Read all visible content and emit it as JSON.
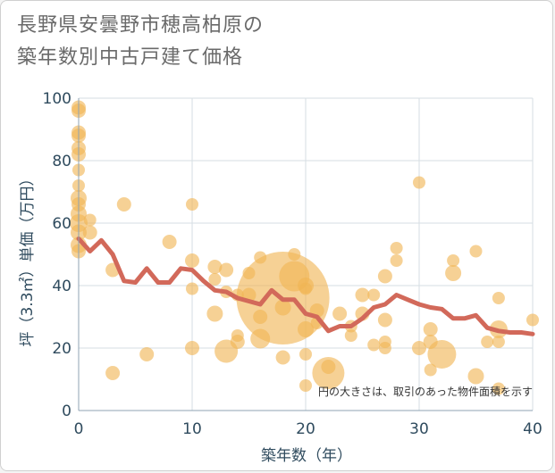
{
  "title_lines": [
    "長野県安曇野市穂高柏原の",
    "築年数別中古戸建て価格"
  ],
  "chart_data": {
    "type": "scatter",
    "title": "長野県安曇野市穂高柏原の築年数別中古戸建て価格",
    "xlabel": "築年数（年）",
    "ylabel": "坪（3.3㎡）単価（万円）",
    "xlim": [
      0,
      40
    ],
    "ylim": [
      0,
      100
    ],
    "xticks": [
      0,
      10,
      20,
      30,
      40
    ],
    "yticks": [
      0,
      20,
      40,
      60,
      80,
      100
    ],
    "grid": true,
    "note": "円の大きさは、取引のあった物件面積を示す",
    "bubble_color": "#f0b454",
    "line_color": "#d2695a",
    "points": [
      {
        "x": 0,
        "y": 96,
        "s": 8
      },
      {
        "x": 0,
        "y": 97,
        "s": 8
      },
      {
        "x": 0,
        "y": 89,
        "s": 8
      },
      {
        "x": 0,
        "y": 88,
        "s": 8
      },
      {
        "x": 0,
        "y": 84,
        "s": 8
      },
      {
        "x": 0,
        "y": 82,
        "s": 8
      },
      {
        "x": 0,
        "y": 77,
        "s": 7
      },
      {
        "x": 0,
        "y": 72,
        "s": 7
      },
      {
        "x": 0,
        "y": 68,
        "s": 9
      },
      {
        "x": 0,
        "y": 66,
        "s": 8
      },
      {
        "x": 0,
        "y": 63,
        "s": 9
      },
      {
        "x": 0,
        "y": 60,
        "s": 10
      },
      {
        "x": 0,
        "y": 57,
        "s": 9
      },
      {
        "x": 0,
        "y": 53,
        "s": 9
      },
      {
        "x": 0,
        "y": 51,
        "s": 8
      },
      {
        "x": 1,
        "y": 61,
        "s": 7
      },
      {
        "x": 1,
        "y": 57,
        "s": 8
      },
      {
        "x": 3,
        "y": 45,
        "s": 8
      },
      {
        "x": 3,
        "y": 12,
        "s": 8
      },
      {
        "x": 4,
        "y": 66,
        "s": 8
      },
      {
        "x": 6,
        "y": 18,
        "s": 8
      },
      {
        "x": 8,
        "y": 54,
        "s": 8
      },
      {
        "x": 10,
        "y": 66,
        "s": 7
      },
      {
        "x": 10,
        "y": 48,
        "s": 8
      },
      {
        "x": 10,
        "y": 39,
        "s": 7
      },
      {
        "x": 10,
        "y": 20,
        "s": 8
      },
      {
        "x": 12,
        "y": 46,
        "s": 8
      },
      {
        "x": 12,
        "y": 42,
        "s": 7
      },
      {
        "x": 12,
        "y": 31,
        "s": 9
      },
      {
        "x": 13,
        "y": 45,
        "s": 8
      },
      {
        "x": 13,
        "y": 38,
        "s": 7
      },
      {
        "x": 13,
        "y": 19,
        "s": 13
      },
      {
        "x": 14,
        "y": 37,
        "s": 7
      },
      {
        "x": 14,
        "y": 24,
        "s": 7
      },
      {
        "x": 14,
        "y": 22,
        "s": 8
      },
      {
        "x": 15,
        "y": 44,
        "s": 7
      },
      {
        "x": 15,
        "y": 37,
        "s": 8
      },
      {
        "x": 16,
        "y": 49,
        "s": 7
      },
      {
        "x": 16,
        "y": 30,
        "s": 8
      },
      {
        "x": 16,
        "y": 23,
        "s": 11
      },
      {
        "x": 18,
        "y": 36,
        "s": 52
      },
      {
        "x": 18,
        "y": 33,
        "s": 9
      },
      {
        "x": 18,
        "y": 17,
        "s": 8
      },
      {
        "x": 19,
        "y": 50,
        "s": 7
      },
      {
        "x": 19,
        "y": 43,
        "s": 17
      },
      {
        "x": 20,
        "y": 40,
        "s": 9
      },
      {
        "x": 20,
        "y": 39,
        "s": 7
      },
      {
        "x": 20,
        "y": 26,
        "s": 9
      },
      {
        "x": 20,
        "y": 18,
        "s": 7
      },
      {
        "x": 20,
        "y": 8,
        "s": 7
      },
      {
        "x": 21,
        "y": 32,
        "s": 8
      },
      {
        "x": 21,
        "y": 28,
        "s": 7
      },
      {
        "x": 22,
        "y": 14,
        "s": 8
      },
      {
        "x": 22,
        "y": 12,
        "s": 18
      },
      {
        "x": 23,
        "y": 31,
        "s": 8
      },
      {
        "x": 24,
        "y": 27,
        "s": 7
      },
      {
        "x": 24,
        "y": 24,
        "s": 7
      },
      {
        "x": 25,
        "y": 37,
        "s": 8
      },
      {
        "x": 25,
        "y": 31,
        "s": 8
      },
      {
        "x": 26,
        "y": 37,
        "s": 7
      },
      {
        "x": 26,
        "y": 21,
        "s": 7
      },
      {
        "x": 27,
        "y": 43,
        "s": 8
      },
      {
        "x": 27,
        "y": 29,
        "s": 8
      },
      {
        "x": 27,
        "y": 22,
        "s": 7
      },
      {
        "x": 27,
        "y": 20,
        "s": 7
      },
      {
        "x": 28,
        "y": 52,
        "s": 7
      },
      {
        "x": 28,
        "y": 48,
        "s": 7
      },
      {
        "x": 30,
        "y": 73,
        "s": 7
      },
      {
        "x": 30,
        "y": 20,
        "s": 8
      },
      {
        "x": 31,
        "y": 26,
        "s": 8
      },
      {
        "x": 31,
        "y": 22,
        "s": 8
      },
      {
        "x": 31,
        "y": 13,
        "s": 7
      },
      {
        "x": 32,
        "y": 18,
        "s": 16
      },
      {
        "x": 33,
        "y": 48,
        "s": 7
      },
      {
        "x": 33,
        "y": 44,
        "s": 9
      },
      {
        "x": 35,
        "y": 51,
        "s": 7
      },
      {
        "x": 35,
        "y": 11,
        "s": 9
      },
      {
        "x": 36,
        "y": 22,
        "s": 7
      },
      {
        "x": 37,
        "y": 36,
        "s": 7
      },
      {
        "x": 37,
        "y": 26,
        "s": 10
      },
      {
        "x": 37,
        "y": 22,
        "s": 7
      },
      {
        "x": 37,
        "y": 7,
        "s": 7
      },
      {
        "x": 40,
        "y": 29,
        "s": 7
      }
    ],
    "trend": {
      "x": [
        0,
        1,
        2,
        3,
        4,
        5,
        6,
        7,
        8,
        9,
        10,
        11,
        12,
        13,
        14,
        15,
        16,
        17,
        18,
        19,
        20,
        21,
        22,
        23,
        24,
        25,
        26,
        27,
        28,
        29,
        30,
        31,
        32,
        33,
        34,
        35,
        36,
        37,
        38,
        39,
        40
      ],
      "y": [
        55,
        51,
        54.5,
        50,
        41.5,
        41,
        45.5,
        41,
        41,
        45.5,
        45,
        41.5,
        38.5,
        38,
        36,
        35,
        34,
        38.5,
        35.5,
        35.5,
        31,
        30,
        25.5,
        27,
        27,
        29.5,
        33,
        34,
        37,
        35.5,
        34,
        33,
        32.5,
        29.5,
        29.5,
        30.5,
        26.5,
        25.5,
        25,
        25,
        24.5
      ]
    }
  }
}
